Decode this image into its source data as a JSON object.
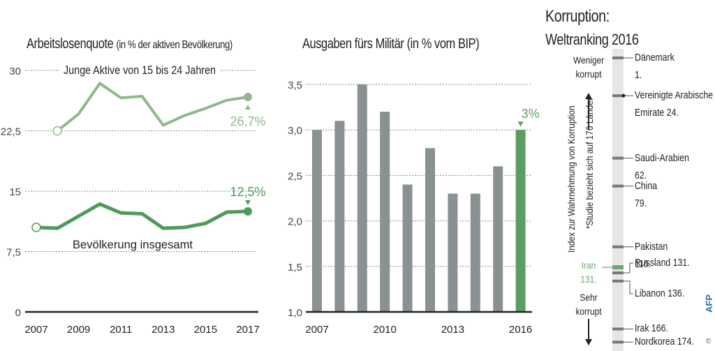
{
  "chart_data": [
    {
      "type": "line",
      "title": "Arbeitslosenquote",
      "subtitle": "(in % der aktiven Bevölkerung)",
      "xlabel": "",
      "ylabel": "",
      "ylim": [
        0,
        30
      ],
      "yticks": [
        "0",
        "7,5",
        "15",
        "22,5",
        "30"
      ],
      "ytick_values": [
        0,
        7.5,
        15,
        22.5,
        30
      ],
      "xticks": [
        "2007",
        "2009",
        "2011",
        "2013",
        "2015",
        "2017"
      ],
      "grid": "dotted horizontal",
      "series": [
        {
          "name": "Junge Aktive von 15 bis 24 Jahren",
          "color": "#8fb98a",
          "x": [
            2008,
            2009,
            2010,
            2011,
            2012,
            2013,
            2014,
            2015,
            2016,
            2017
          ],
          "values": [
            22.5,
            24.6,
            28.4,
            26.6,
            26.8,
            23.2,
            24.4,
            25.3,
            26.3,
            26.7
          ],
          "end_label": "26,7%"
        },
        {
          "name": "Bevölkerung insgesamt",
          "color": "#4f9a58",
          "x": [
            2007,
            2008,
            2009,
            2010,
            2011,
            2012,
            2013,
            2014,
            2015,
            2016,
            2017
          ],
          "values": [
            10.5,
            10.4,
            11.9,
            13.4,
            12.3,
            12.2,
            10.4,
            10.5,
            11.0,
            12.4,
            12.5
          ],
          "end_label": "12,5%"
        }
      ]
    },
    {
      "type": "bar",
      "title": "Ausgaben fürs Militär (in % vom BIP)",
      "xlabel": "",
      "ylabel": "",
      "ylim": [
        1.0,
        3.5
      ],
      "yticks": [
        "1,0",
        "1,5",
        "2,0",
        "2,5",
        "3,0",
        "3,5"
      ],
      "ytick_values": [
        1.0,
        1.5,
        2.0,
        2.5,
        3.0,
        3.5
      ],
      "xticks": [
        "2007",
        "2010",
        "2013",
        "2016"
      ],
      "categories": [
        "2007",
        "2008",
        "2009",
        "2010",
        "2011",
        "2012",
        "2013",
        "2014",
        "2015",
        "2016"
      ],
      "values": [
        3.0,
        3.1,
        3.5,
        3.2,
        2.4,
        2.8,
        2.3,
        2.3,
        2.6,
        3.0
      ],
      "bar_color": "#8a9193",
      "highlight_color": "#5a9e62",
      "highlight_category": "2016",
      "highlight_label": "3%",
      "grid": "dotted horizontal"
    },
    {
      "type": "table",
      "title": "Korruption:",
      "subtitle": "Weltranking 2016",
      "top_label": "Weniger korrupt",
      "bottom_label": "Sehr korrupt",
      "axis_caption": "Index zur Wahrnehmung von Korruption",
      "footnote": "*Studie bezieht sich auf 176 Länder",
      "total_countries": 176,
      "rows": [
        {
          "country": "Dänemark",
          "rank": 1,
          "label": "Dänemark",
          "rank_label": "1."
        },
        {
          "country": "Vereinigte Arabische Emirate",
          "rank": 24,
          "label": "Vereinigte Arabische",
          "rank_label": "Emirate 24."
        },
        {
          "country": "Saudi-Arabien",
          "rank": 62,
          "label": "Saudi-Arabien",
          "rank_label": "62."
        },
        {
          "country": "China",
          "rank": 79,
          "label": "China",
          "rank_label": "79."
        },
        {
          "country": "Pakistan",
          "rank": 116,
          "label": "Pakistan",
          "rank_label": "116."
        },
        {
          "country": "Russland",
          "rank": 131,
          "label": "Russland 131.",
          "rank_label": ""
        },
        {
          "country": "Libanon",
          "rank": 136,
          "label": "Libanon 136.",
          "rank_label": ""
        },
        {
          "country": "Irak",
          "rank": 166,
          "label": "Irak 166.",
          "rank_label": ""
        },
        {
          "country": "Nordkorea",
          "rank": 174,
          "label": "Nordkorea  174.",
          "rank_label": ""
        }
      ],
      "highlight": {
        "country": "Iran",
        "rank": 131,
        "label": "Iran",
        "rank_label": "131.",
        "color": "#6aa86f"
      }
    }
  ],
  "credit": {
    "logo": "AFP",
    "copyright": "©"
  }
}
